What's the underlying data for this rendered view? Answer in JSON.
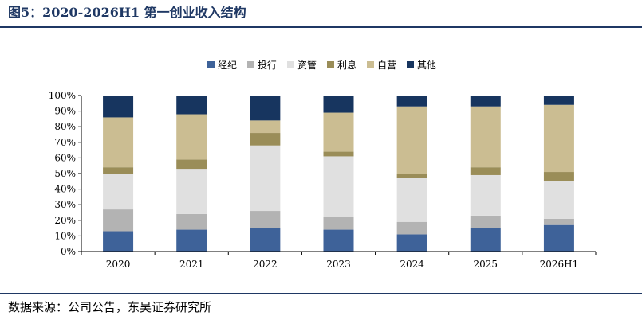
{
  "figure": {
    "title": "图5：2020-2026H1 第一创业收入结构",
    "source_label": "数据来源：",
    "source_text": "公司公告，东吴证券研究所"
  },
  "colors": {
    "title": "#1f3864",
    "rule": "#1f3864",
    "series": [
      "#3e6299",
      "#b3b3b3",
      "#e0e0e0",
      "#9a8d58",
      "#cbbd92",
      "#17355f"
    ]
  },
  "chart_data": {
    "type": "bar",
    "stacked": true,
    "percent": true,
    "categories": [
      "2020",
      "2021",
      "2022",
      "2023",
      "2024",
      "2025",
      "2026H1"
    ],
    "series": [
      {
        "name": "经纪",
        "values": [
          13,
          14,
          15,
          14,
          11,
          15,
          17
        ]
      },
      {
        "name": "投行",
        "values": [
          14,
          10,
          11,
          8,
          8,
          8,
          4
        ]
      },
      {
        "name": "资管",
        "values": [
          23,
          29,
          42,
          39,
          28,
          26,
          24
        ]
      },
      {
        "name": "利息",
        "values": [
          4,
          6,
          8,
          3,
          3,
          5,
          6
        ]
      },
      {
        "name": "自营",
        "values": [
          32,
          29,
          8,
          25,
          43,
          39,
          43
        ]
      },
      {
        "name": "其他",
        "values": [
          14,
          12,
          16,
          11,
          7,
          7,
          6
        ]
      }
    ],
    "yticks": [
      "0%",
      "10%",
      "20%",
      "30%",
      "40%",
      "50%",
      "60%",
      "70%",
      "80%",
      "90%",
      "100%"
    ],
    "ylim": [
      0,
      100
    ],
    "legend_position": "top-center",
    "grid": false
  }
}
